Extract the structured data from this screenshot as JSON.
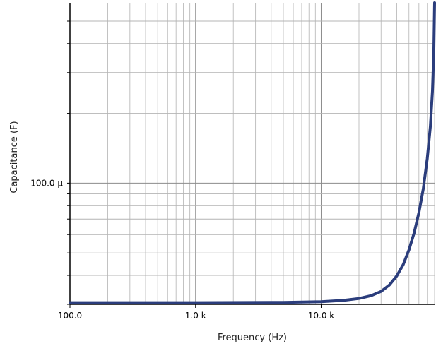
{
  "chart_data": {
    "type": "line",
    "x_scale": "log",
    "y_scale": "log",
    "xlabel": "Frequency (Hz)",
    "ylabel": "Capacitance (F)",
    "xlim": [
      100,
      80000
    ],
    "ylim": [
      3e-05,
      0.0006
    ],
    "grid": true,
    "x_ticks": [
      {
        "value": 100,
        "label": "100.0"
      },
      {
        "value": 1000,
        "label": "1.0 k"
      },
      {
        "value": 10000,
        "label": "10.0 k"
      }
    ],
    "y_ticks": [
      {
        "value": 0.0001,
        "label": "100.0 µ"
      }
    ],
    "series": [
      {
        "color": "#2b3d7c",
        "x": [
          100,
          1000,
          5000,
          10000,
          15000,
          20000,
          25000,
          30000,
          35000,
          40000,
          45000,
          50000,
          55000,
          60000,
          65000,
          70000,
          74000,
          77000,
          79000,
          80000
        ],
        "y": [
          3.05e-05,
          3.05e-05,
          3.06e-05,
          3.08e-05,
          3.12e-05,
          3.18e-05,
          3.27e-05,
          3.41e-05,
          3.64e-05,
          3.98e-05,
          4.45e-05,
          5.15e-05,
          6.1e-05,
          7.45e-05,
          9.45e-05,
          0.000128,
          0.000175,
          0.00025,
          0.00038,
          0.0006
        ]
      }
    ]
  }
}
